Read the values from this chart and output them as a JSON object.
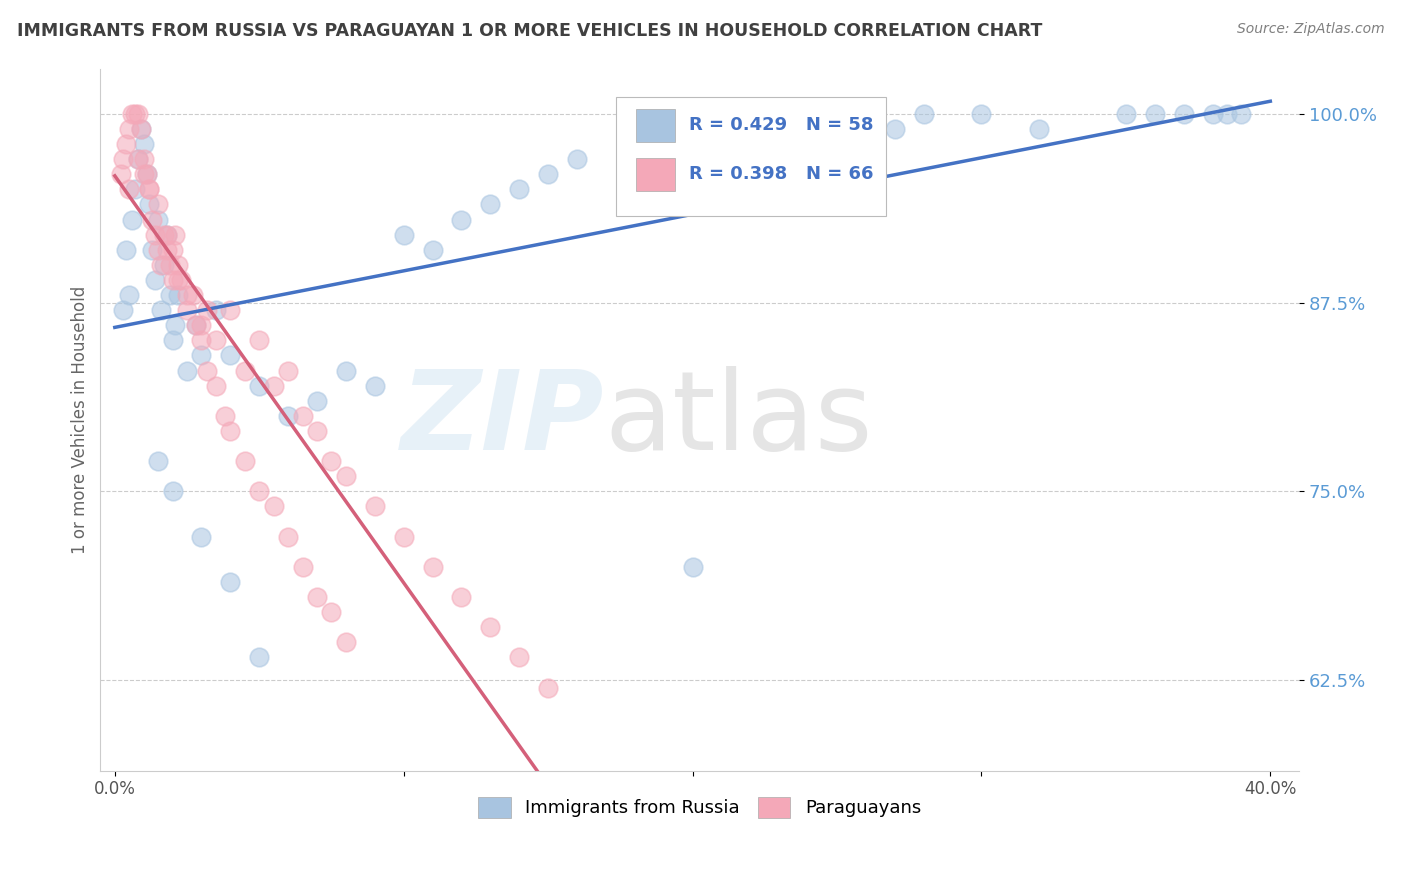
{
  "title": "IMMIGRANTS FROM RUSSIA VS PARAGUAYAN 1 OR MORE VEHICLES IN HOUSEHOLD CORRELATION CHART",
  "source": "Source: ZipAtlas.com",
  "ylabel": "1 or more Vehicles in Household",
  "legend_labels": [
    "Immigrants from Russia",
    "Paraguayans"
  ],
  "legend_r_blue": "R = 0.429",
  "legend_n_blue": "N = 58",
  "legend_r_pink": "R = 0.398",
  "legend_n_pink": "N = 66",
  "blue_color": "#a8c4e0",
  "pink_color": "#f4a8b8",
  "blue_line_color": "#4472c4",
  "pink_line_color": "#d4607a",
  "legend_text_color": "#4472c4",
  "title_color": "#404040",
  "source_color": "#808080",
  "grid_color": "#cccccc",
  "ytick_color": "#5b9bd5",
  "blue_x": [
    0.3,
    0.4,
    0.5,
    0.6,
    0.7,
    0.8,
    0.9,
    1.0,
    1.1,
    1.2,
    1.3,
    1.4,
    1.5,
    1.6,
    1.7,
    1.8,
    1.9,
    2.0,
    2.1,
    2.2,
    2.5,
    2.8,
    3.0,
    3.5,
    4.0,
    5.0,
    6.0,
    7.0,
    8.0,
    9.0,
    10.0,
    11.0,
    12.0,
    13.0,
    14.0,
    15.0,
    16.0,
    18.0,
    20.0,
    22.0,
    24.0,
    25.0,
    26.0,
    27.0,
    28.0,
    30.0,
    32.0,
    35.0,
    36.0,
    37.0,
    38.0,
    38.5,
    39.0,
    1.5,
    2.0,
    3.0,
    4.0,
    5.0
  ],
  "blue_y": [
    0.87,
    0.91,
    0.88,
    0.93,
    0.95,
    0.97,
    0.99,
    0.98,
    0.96,
    0.94,
    0.91,
    0.89,
    0.93,
    0.87,
    0.9,
    0.92,
    0.88,
    0.85,
    0.86,
    0.88,
    0.83,
    0.86,
    0.84,
    0.87,
    0.84,
    0.82,
    0.8,
    0.81,
    0.83,
    0.82,
    0.92,
    0.91,
    0.93,
    0.94,
    0.95,
    0.96,
    0.97,
    0.98,
    0.7,
    0.95,
    0.96,
    0.97,
    0.98,
    0.99,
    1.0,
    1.0,
    0.99,
    1.0,
    1.0,
    1.0,
    1.0,
    1.0,
    1.0,
    0.77,
    0.75,
    0.72,
    0.69,
    0.64
  ],
  "pink_x": [
    0.2,
    0.3,
    0.4,
    0.5,
    0.6,
    0.7,
    0.8,
    0.9,
    1.0,
    1.1,
    1.2,
    1.3,
    1.4,
    1.5,
    1.6,
    1.7,
    1.8,
    1.9,
    2.0,
    2.1,
    2.2,
    2.3,
    2.5,
    2.7,
    3.0,
    3.2,
    3.5,
    4.0,
    4.5,
    5.0,
    5.5,
    6.0,
    6.5,
    7.0,
    7.5,
    8.0,
    9.0,
    10.0,
    11.0,
    12.0,
    13.0,
    14.0,
    15.0,
    0.5,
    0.8,
    1.0,
    1.2,
    1.5,
    1.8,
    2.0,
    2.2,
    2.5,
    2.8,
    3.0,
    3.2,
    3.5,
    3.8,
    4.0,
    4.5,
    5.0,
    5.5,
    6.0,
    6.5,
    7.0,
    7.5,
    8.0
  ],
  "pink_y": [
    0.96,
    0.97,
    0.98,
    0.99,
    1.0,
    1.0,
    1.0,
    0.99,
    0.97,
    0.96,
    0.95,
    0.93,
    0.92,
    0.91,
    0.9,
    0.92,
    0.91,
    0.9,
    0.89,
    0.92,
    0.9,
    0.89,
    0.87,
    0.88,
    0.86,
    0.87,
    0.85,
    0.87,
    0.83,
    0.85,
    0.82,
    0.83,
    0.8,
    0.79,
    0.77,
    0.76,
    0.74,
    0.72,
    0.7,
    0.68,
    0.66,
    0.64,
    0.62,
    0.95,
    0.97,
    0.96,
    0.95,
    0.94,
    0.92,
    0.91,
    0.89,
    0.88,
    0.86,
    0.85,
    0.83,
    0.82,
    0.8,
    0.79,
    0.77,
    0.75,
    0.74,
    0.72,
    0.7,
    0.68,
    0.67,
    0.65
  ]
}
